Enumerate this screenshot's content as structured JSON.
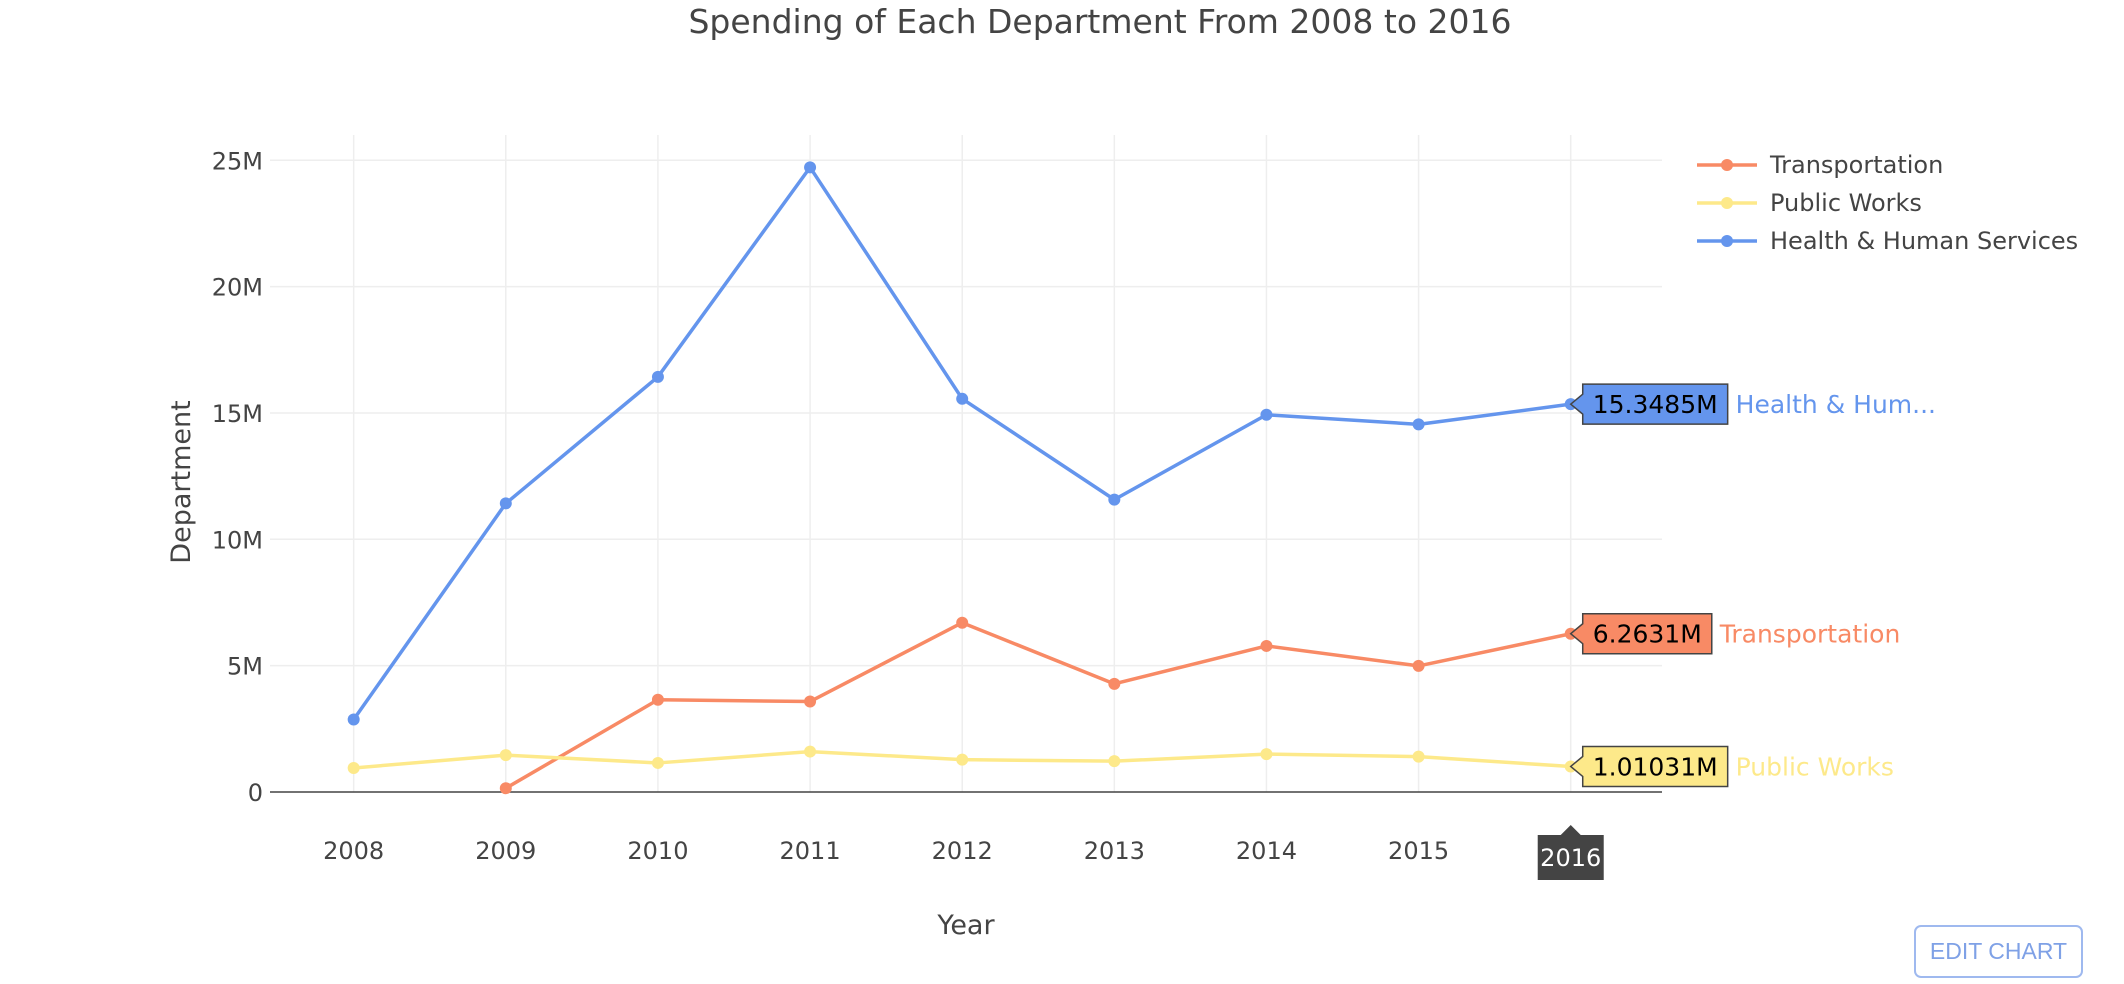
{
  "chart_data": {
    "type": "line",
    "title": "Spending of Each Department From 2008 to 2016",
    "xlabel": "Year",
    "ylabel": "Department",
    "x": [
      2008,
      2009,
      2010,
      2011,
      2012,
      2013,
      2014,
      2015,
      2016
    ],
    "x_tick_labels": [
      "2008",
      "2009",
      "2010",
      "2011",
      "2012",
      "2013",
      "2014",
      "2015",
      "2016"
    ],
    "y_ticks": [
      0,
      5000000,
      10000000,
      15000000,
      20000000,
      25000000
    ],
    "y_tick_labels": [
      "0",
      "5M",
      "10M",
      "15M",
      "20M",
      "25M"
    ],
    "ylim": [
      0,
      26000000
    ],
    "xlim": [
      2007.45,
      2016.6
    ],
    "grid": true,
    "legend_position": "top-right",
    "series": [
      {
        "name": "Transportation",
        "color": "#f88a65",
        "values": [
          null,
          150000,
          3650000,
          3580000,
          6700000,
          4280000,
          5780000,
          4990000,
          6263100
        ]
      },
      {
        "name": "Public Works",
        "color": "#fde98a",
        "values": [
          950000,
          1460000,
          1150000,
          1600000,
          1280000,
          1220000,
          1500000,
          1400000,
          1010310
        ]
      },
      {
        "name": "Health & Human Services",
        "color": "#6495ed",
        "values": [
          2870000,
          11420000,
          16430000,
          24720000,
          15560000,
          11570000,
          14930000,
          14550000,
          15348500
        ]
      }
    ],
    "hover": {
      "x_label": "2016",
      "labels": [
        {
          "series": 2,
          "value_text": "15.3485M",
          "name_text": "Health & Hum..."
        },
        {
          "series": 0,
          "value_text": "6.2631M",
          "name_text": "Transportation"
        },
        {
          "series": 1,
          "value_text": "1.01031M",
          "name_text": "Public Works"
        }
      ]
    }
  },
  "controls": {
    "edit_chart_label": "EDIT CHART"
  }
}
